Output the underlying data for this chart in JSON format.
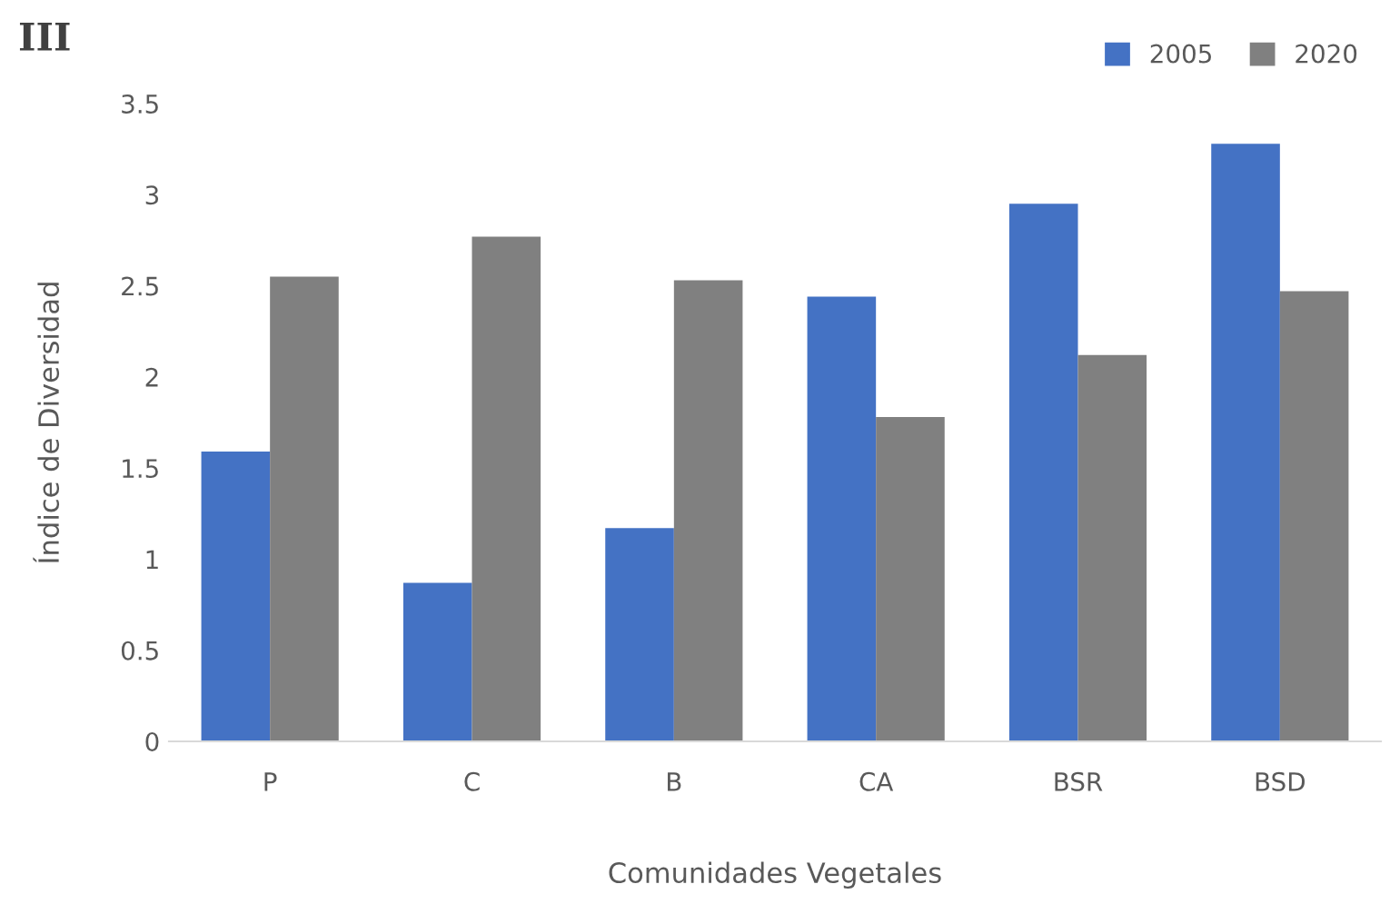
{
  "chart_data": {
    "type": "bar",
    "title": "III",
    "xlabel": "Comunidades Vegetales",
    "ylabel": "Índice de Diversidad",
    "categories": [
      "P",
      "C",
      "B",
      "CA",
      "BSR",
      "BSD"
    ],
    "series": [
      {
        "name": "2005",
        "color": "#4472c4",
        "values": [
          1.59,
          0.87,
          1.17,
          2.44,
          2.95,
          3.28
        ]
      },
      {
        "name": "2020",
        "color": "#808080",
        "values": [
          2.55,
          2.77,
          2.53,
          1.78,
          2.12,
          2.47
        ]
      }
    ],
    "ylim": [
      0,
      3.5
    ],
    "yticks": [
      0,
      0.5,
      1,
      1.5,
      2,
      2.5,
      3,
      3.5
    ],
    "grid": false,
    "legend": "top right"
  }
}
